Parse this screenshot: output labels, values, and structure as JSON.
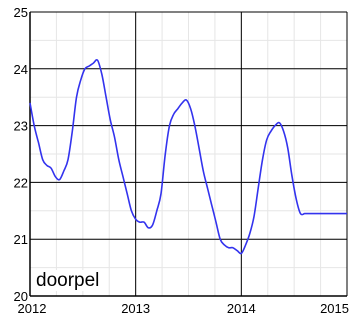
{
  "chart_data": {
    "type": "line",
    "title": "",
    "xlabel": "",
    "ylabel": "",
    "xlim": [
      2012,
      2015
    ],
    "ylim": [
      20,
      25
    ],
    "x_ticks": [
      "2012",
      "2013",
      "2014",
      "2015"
    ],
    "y_ticks": [
      "20",
      "21",
      "22",
      "23",
      "24",
      "25"
    ],
    "grid": true,
    "annotation": "doorpel",
    "line_color": "#3333ee",
    "series": [
      {
        "x": [
          2012.0,
          2012.04,
          2012.08,
          2012.12,
          2012.16,
          2012.2,
          2012.24,
          2012.28,
          2012.32,
          2012.36,
          2012.4,
          2012.44,
          2012.48,
          2012.52,
          2012.56,
          2012.6,
          2012.64,
          2012.68,
          2012.72,
          2012.76,
          2012.8,
          2012.84,
          2012.88,
          2012.92,
          2012.96,
          2013.0,
          2013.04,
          2013.08,
          2013.12,
          2013.16,
          2013.2,
          2013.24,
          2013.28,
          2013.32,
          2013.36,
          2013.4,
          2013.44,
          2013.48,
          2013.52,
          2013.56,
          2013.6,
          2013.64,
          2013.68,
          2013.72,
          2013.76,
          2013.8,
          2013.84,
          2013.88,
          2013.92,
          2013.96,
          2014.0,
          2014.04,
          2014.08,
          2014.12,
          2014.16,
          2014.2,
          2014.24,
          2014.28,
          2014.32,
          2014.36,
          2014.4,
          2014.44,
          2014.48,
          2014.52,
          2014.56,
          2014.6,
          2014.64,
          2014.68,
          2014.72,
          2014.76,
          2014.8,
          2014.84,
          2014.88,
          2014.92,
          2014.96,
          2015.0
        ],
        "y": [
          23.4,
          23.0,
          22.7,
          22.4,
          22.3,
          22.25,
          22.1,
          22.05,
          22.2,
          22.4,
          22.9,
          23.5,
          23.8,
          24.0,
          24.05,
          24.1,
          24.15,
          23.9,
          23.5,
          23.1,
          22.8,
          22.4,
          22.1,
          21.8,
          21.5,
          21.35,
          21.3,
          21.3,
          21.2,
          21.25,
          21.5,
          21.8,
          22.5,
          23.0,
          23.2,
          23.3,
          23.4,
          23.45,
          23.3,
          23.0,
          22.6,
          22.2,
          21.9,
          21.6,
          21.3,
          21.0,
          20.9,
          20.85,
          20.85,
          20.8,
          20.75,
          20.9,
          21.1,
          21.4,
          21.9,
          22.4,
          22.75,
          22.9,
          23.0,
          23.05,
          22.9,
          22.6,
          22.1,
          21.7,
          21.45,
          21.45,
          21.45,
          21.45,
          21.45,
          21.45,
          21.45,
          21.45,
          21.45,
          21.45,
          21.45,
          21.45
        ]
      }
    ]
  }
}
